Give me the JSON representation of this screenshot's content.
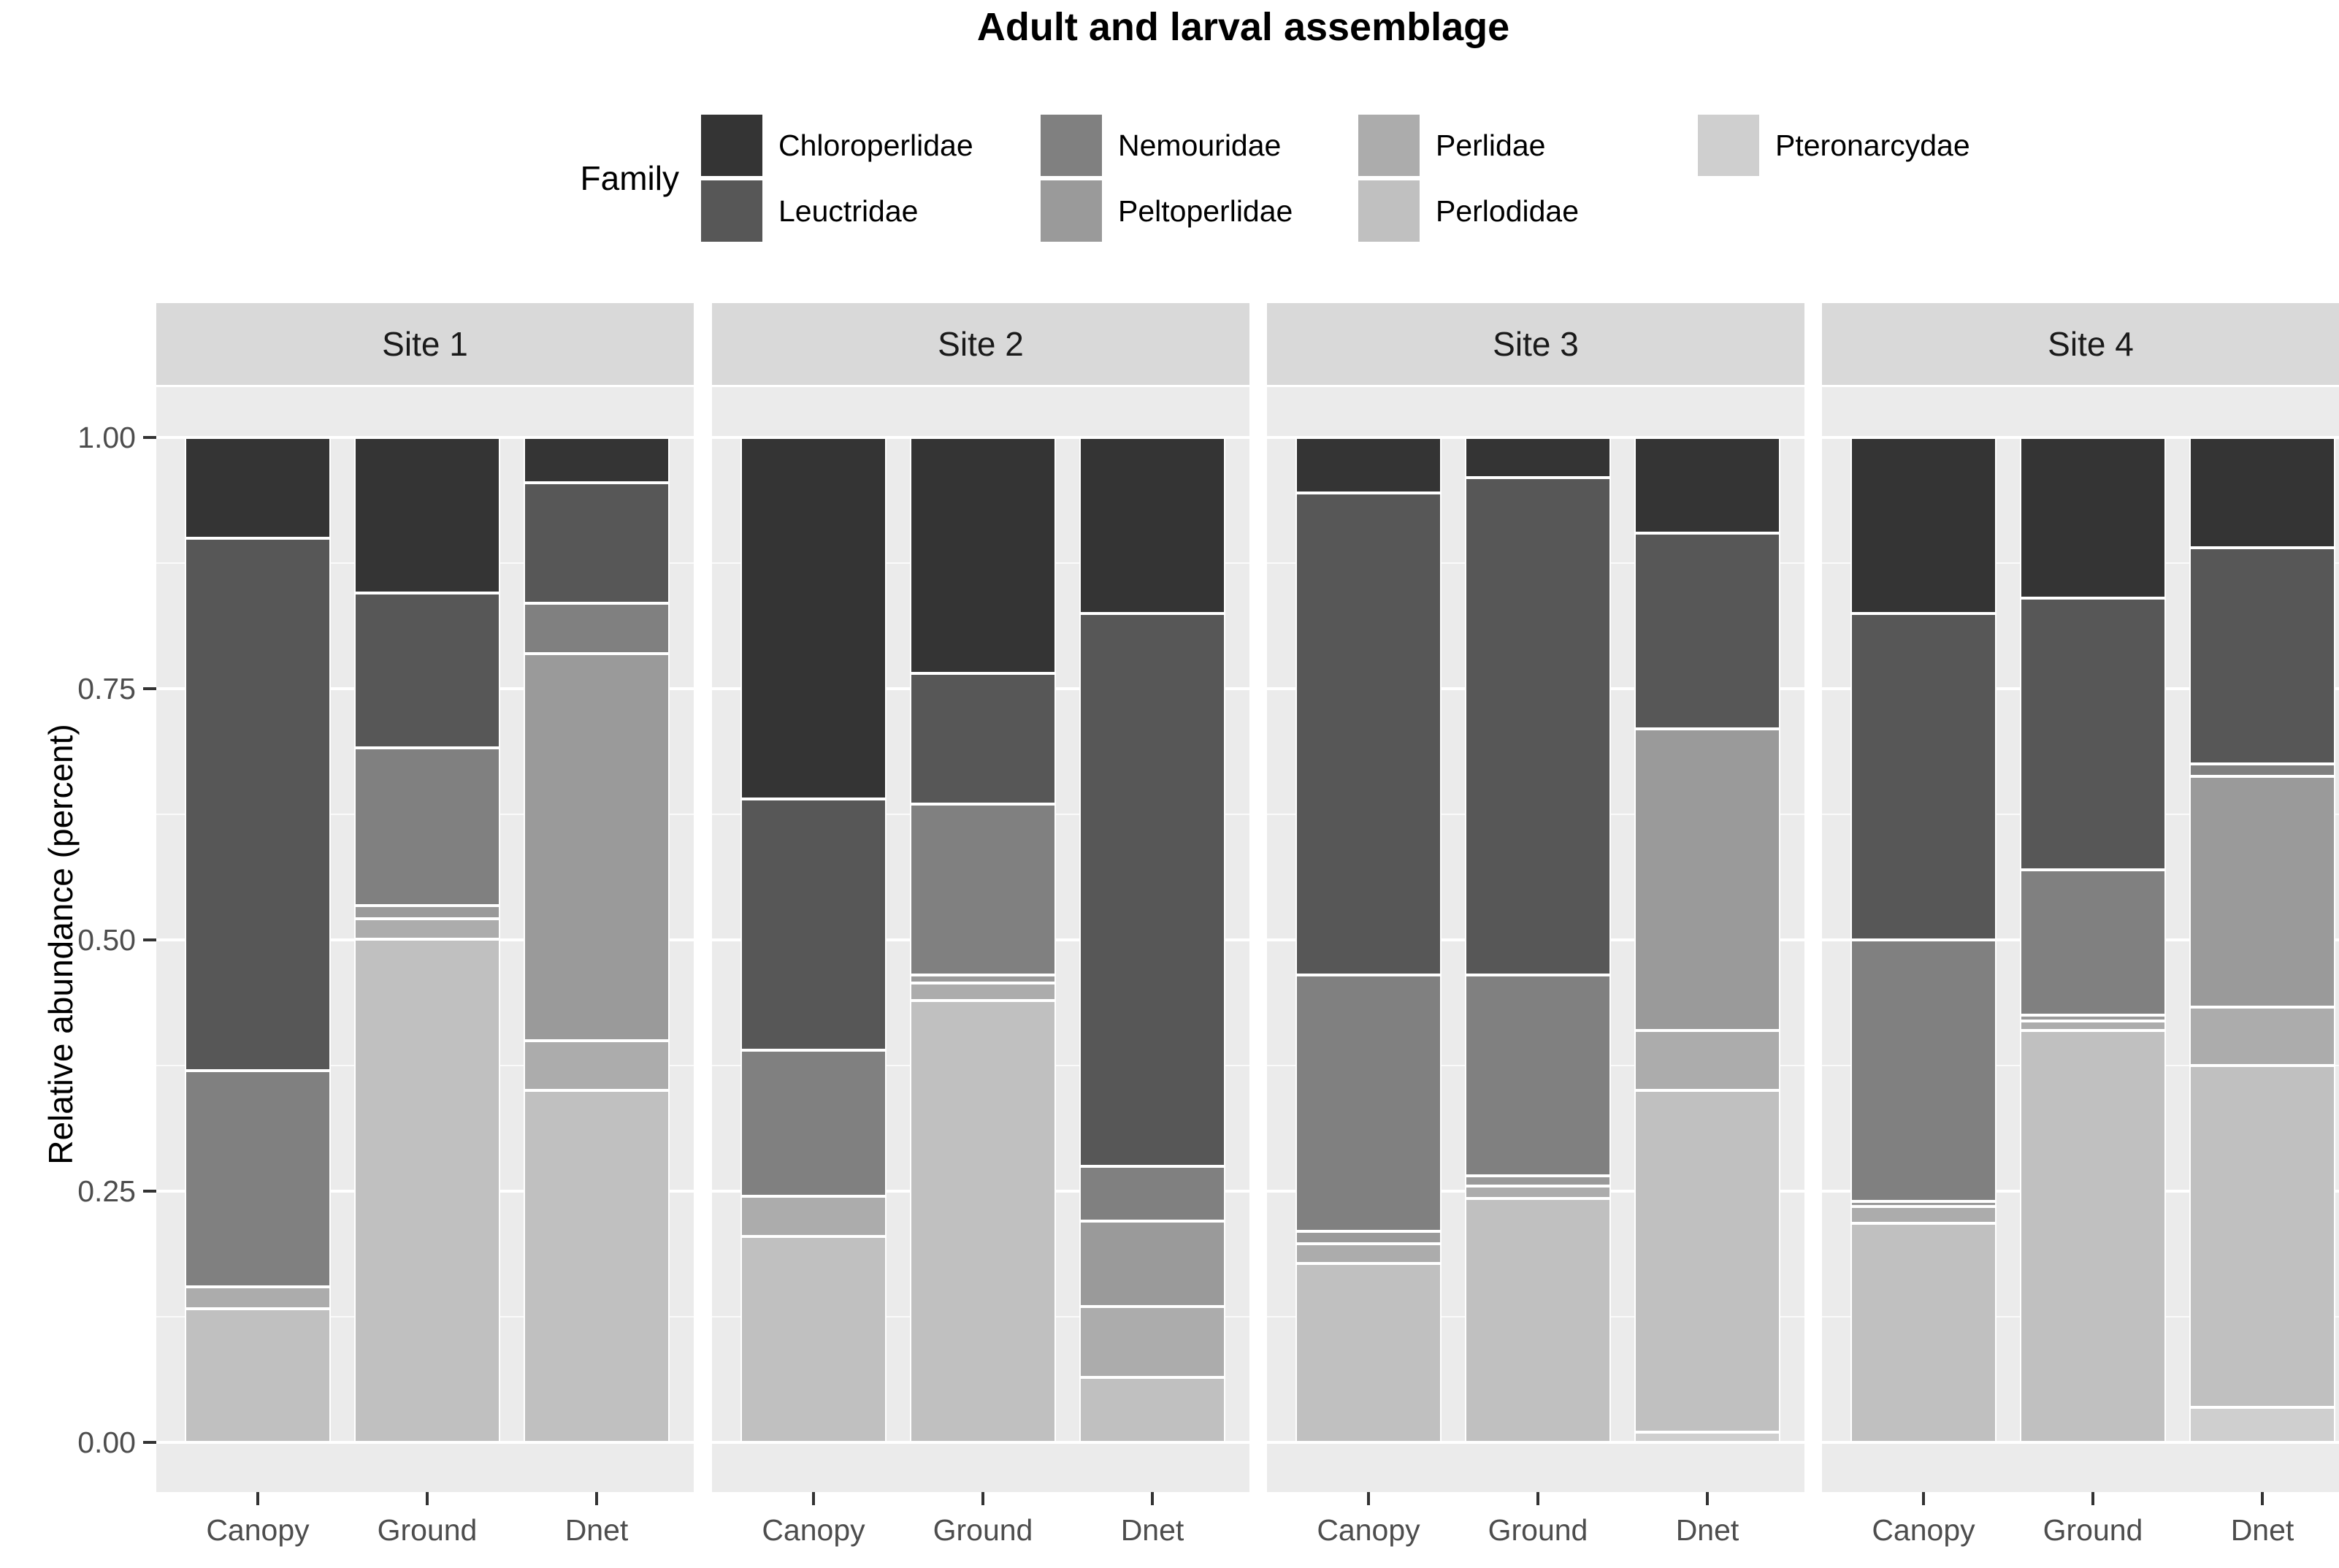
{
  "title": "Adult and larval assemblage",
  "legend": {
    "title": "Family",
    "columns": [
      [
        "Chloroperlidae",
        "Leuctridae"
      ],
      [
        "Nemouridae",
        "Peltoperlidae"
      ],
      [
        "Perlidae",
        "Perlodidae"
      ],
      [
        "Pteronarcydae"
      ]
    ]
  },
  "chart_data": {
    "type": "bar",
    "stacked": true,
    "normalized": true,
    "title": "Adult and larval assemblage",
    "ylabel": "Relative abundance (percent)",
    "xlabel": "",
    "ylim": [
      0,
      1
    ],
    "ytick_labels": [
      "0.00",
      "0.25",
      "0.50",
      "0.75",
      "1.00"
    ],
    "ytick_values": [
      0,
      0.25,
      0.5,
      0.75,
      1.0
    ],
    "minor_grid_values": [
      0.125,
      0.375,
      0.625,
      0.875
    ],
    "grid": true,
    "legend_position": "top",
    "categories": [
      "Canopy",
      "Ground",
      "Dnet"
    ],
    "families": [
      {
        "name": "Chloroperlidae",
        "color": "#343434"
      },
      {
        "name": "Leuctridae",
        "color": "#575757"
      },
      {
        "name": "Nemouridae",
        "color": "#808080"
      },
      {
        "name": "Peltoperlidae",
        "color": "#9A9A9A"
      },
      {
        "name": "Perlidae",
        "color": "#ACACAC"
      },
      {
        "name": "Perlodidae",
        "color": "#C0C0C0"
      },
      {
        "name": "Pteronarcydae",
        "color": "#CFCFCF"
      }
    ],
    "facets": [
      {
        "label": "Site 1",
        "bars": [
          {
            "category": "Canopy",
            "values": [
              0.1,
              0.53,
              0.215,
              0.0,
              0.022,
              0.133,
              0.0
            ]
          },
          {
            "category": "Ground",
            "values": [
              0.155,
              0.154,
              0.157,
              0.013,
              0.02,
              0.501,
              0.0
            ]
          },
          {
            "category": "Dnet",
            "values": [
              0.045,
              0.12,
              0.05,
              0.385,
              0.05,
              0.35,
              0.0
            ]
          }
        ]
      },
      {
        "label": "Site 2",
        "bars": [
          {
            "category": "Canopy",
            "values": [
              0.36,
              0.25,
              0.145,
              0.0,
              0.04,
              0.205,
              0.0
            ]
          },
          {
            "category": "Ground",
            "values": [
              0.235,
              0.13,
              0.17,
              0.008,
              0.017,
              0.44,
              0.0
            ]
          },
          {
            "category": "Dnet",
            "values": [
              0.175,
              0.55,
              0.055,
              0.085,
              0.07,
              0.065,
              0.0
            ]
          }
        ]
      },
      {
        "label": "Site 3",
        "bars": [
          {
            "category": "Canopy",
            "values": [
              0.055,
              0.48,
              0.255,
              0.012,
              0.02,
              0.178,
              0.0
            ]
          },
          {
            "category": "Ground",
            "values": [
              0.04,
              0.495,
              0.2,
              0.01,
              0.012,
              0.243,
              0.0
            ]
          },
          {
            "category": "Dnet",
            "values": [
              0.095,
              0.195,
              0.0,
              0.3,
              0.06,
              0.34,
              0.01
            ]
          }
        ]
      },
      {
        "label": "Site 4",
        "bars": [
          {
            "category": "Canopy",
            "values": [
              0.175,
              0.325,
              0.26,
              0.005,
              0.017,
              0.218,
              0.0
            ]
          },
          {
            "category": "Ground",
            "values": [
              0.16,
              0.27,
              0.145,
              0.006,
              0.009,
              0.41,
              0.0
            ]
          },
          {
            "category": "Dnet",
            "values": [
              0.11,
              0.215,
              0.012,
              0.23,
              0.058,
              0.34,
              0.035
            ]
          }
        ]
      }
    ]
  },
  "colors": {
    "strip_background": "#D9D9D9",
    "panel_background": "#EBEBEB",
    "gridline": "#FFFFFF",
    "axis_text": "#4D4D4D",
    "tick_mark": "#333333"
  }
}
